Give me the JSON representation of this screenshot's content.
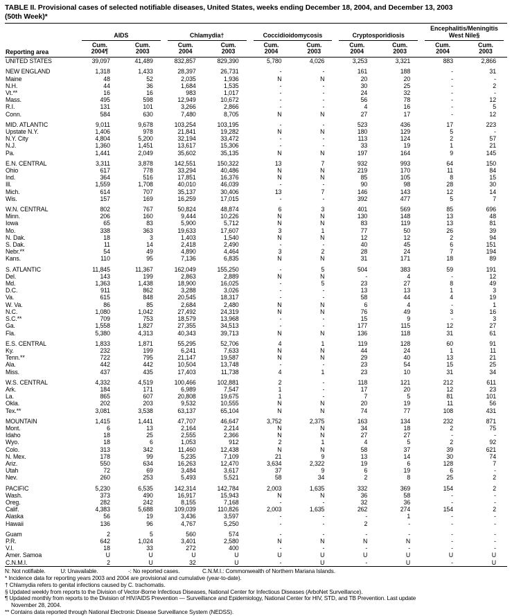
{
  "title": {
    "line1": "TABLE II. Provisional cases of selected notifiable diseases, United States, weeks ending December 18, 2004, and December 13, 2003",
    "line2": "(50th Week)*"
  },
  "table": {
    "reporting_area_header": "Reporting area",
    "groups": [
      {
        "label": "AIDS"
      },
      {
        "label": "Chlamydia†"
      },
      {
        "label": "Coccidioidomycosis"
      },
      {
        "label": "Cryptosporidiosis"
      },
      {
        "label": "Encephalitis/Meningitis\nWest Nile§"
      }
    ],
    "subheaders": [
      "Cum.\n2004¶",
      "Cum.\n2003",
      "Cum.\n2004",
      "Cum.\n2003",
      "Cum.\n2004",
      "Cum.\n2003",
      "Cum.\n2004",
      "Cum.\n2003",
      "Cum.\n2004",
      "Cum.\n2003"
    ],
    "rows": [
      {
        "area": "UNITED STATES",
        "gap": false,
        "values": [
          "39,097",
          "41,489",
          "832,857",
          "829,390",
          "5,780",
          "4,026",
          "3,253",
          "3,321",
          "883",
          "2,866"
        ]
      },
      {
        "area": "NEW ENGLAND",
        "gap": true,
        "values": [
          "1,318",
          "1,433",
          "28,397",
          "26,731",
          "-",
          "-",
          "161",
          "188",
          "-",
          "31"
        ]
      },
      {
        "area": "Maine",
        "gap": false,
        "values": [
          "48",
          "52",
          "2,035",
          "1,936",
          "N",
          "N",
          "20",
          "20",
          "-",
          "-"
        ]
      },
      {
        "area": "N.H.",
        "gap": false,
        "values": [
          "44",
          "36",
          "1,684",
          "1,535",
          "-",
          "-",
          "30",
          "25",
          "-",
          "2"
        ]
      },
      {
        "area": "Vt.**",
        "gap": false,
        "values": [
          "16",
          "16",
          "983",
          "1,017",
          "-",
          "-",
          "24",
          "32",
          "-",
          "-"
        ]
      },
      {
        "area": "Mass.",
        "gap": false,
        "values": [
          "495",
          "598",
          "12,949",
          "10,672",
          "-",
          "-",
          "56",
          "78",
          "-",
          "12"
        ]
      },
      {
        "area": "R.I.",
        "gap": false,
        "values": [
          "131",
          "101",
          "3,266",
          "2,866",
          "-",
          "-",
          "4",
          "16",
          "-",
          "5"
        ]
      },
      {
        "area": "Conn.",
        "gap": false,
        "values": [
          "584",
          "630",
          "7,480",
          "8,705",
          "N",
          "N",
          "27",
          "17",
          "-",
          "12"
        ]
      },
      {
        "area": "MID. ATLANTIC",
        "gap": true,
        "values": [
          "9,011",
          "9,678",
          "103,254",
          "103,195",
          "-",
          "-",
          "523",
          "436",
          "17",
          "223"
        ]
      },
      {
        "area": "Upstate N.Y.",
        "gap": false,
        "values": [
          "1,406",
          "978",
          "21,841",
          "19,282",
          "N",
          "N",
          "180",
          "129",
          "5",
          "-"
        ]
      },
      {
        "area": "N.Y. City",
        "gap": false,
        "values": [
          "4,804",
          "5,200",
          "32,194",
          "33,472",
          "-",
          "-",
          "113",
          "124",
          "2",
          "57"
        ]
      },
      {
        "area": "N.J.",
        "gap": false,
        "values": [
          "1,360",
          "1,451",
          "13,617",
          "15,306",
          "-",
          "-",
          "33",
          "19",
          "1",
          "21"
        ]
      },
      {
        "area": "Pa.",
        "gap": false,
        "values": [
          "1,441",
          "2,049",
          "35,602",
          "35,135",
          "N",
          "N",
          "197",
          "164",
          "9",
          "145"
        ]
      },
      {
        "area": "E.N. CENTRAL",
        "gap": true,
        "values": [
          "3,311",
          "3,878",
          "142,551",
          "150,322",
          "13",
          "7",
          "932",
          "993",
          "64",
          "150"
        ]
      },
      {
        "area": "Ohio",
        "gap": false,
        "values": [
          "617",
          "778",
          "33,294",
          "40,486",
          "N",
          "N",
          "219",
          "170",
          "11",
          "84"
        ]
      },
      {
        "area": "Ind.",
        "gap": false,
        "values": [
          "364",
          "516",
          "17,851",
          "16,376",
          "N",
          "N",
          "85",
          "105",
          "8",
          "15"
        ]
      },
      {
        "area": "Ill.",
        "gap": false,
        "values": [
          "1,559",
          "1,708",
          "40,010",
          "46,039",
          "-",
          "-",
          "90",
          "98",
          "28",
          "30"
        ]
      },
      {
        "area": "Mich.",
        "gap": false,
        "values": [
          "614",
          "707",
          "35,137",
          "30,406",
          "13",
          "7",
          "146",
          "143",
          "12",
          "14"
        ]
      },
      {
        "area": "Wis.",
        "gap": false,
        "values": [
          "157",
          "169",
          "16,259",
          "17,015",
          "-",
          "-",
          "392",
          "477",
          "5",
          "7"
        ]
      },
      {
        "area": "W.N. CENTRAL",
        "gap": true,
        "values": [
          "802",
          "767",
          "50,824",
          "48,874",
          "6",
          "3",
          "401",
          "569",
          "85",
          "696"
        ]
      },
      {
        "area": "Minn.",
        "gap": false,
        "values": [
          "206",
          "160",
          "9,444",
          "10,226",
          "N",
          "N",
          "130",
          "148",
          "13",
          "48"
        ]
      },
      {
        "area": "Iowa",
        "gap": false,
        "values": [
          "65",
          "83",
          "5,900",
          "5,712",
          "N",
          "N",
          "83",
          "119",
          "13",
          "81"
        ]
      },
      {
        "area": "Mo.",
        "gap": false,
        "values": [
          "338",
          "363",
          "19,633",
          "17,607",
          "3",
          "1",
          "77",
          "50",
          "26",
          "39"
        ]
      },
      {
        "area": "N. Dak.",
        "gap": false,
        "values": [
          "18",
          "3",
          "1,403",
          "1,540",
          "N",
          "N",
          "12",
          "12",
          "2",
          "94"
        ]
      },
      {
        "area": "S. Dak.",
        "gap": false,
        "values": [
          "11",
          "14",
          "2,418",
          "2,490",
          "-",
          "-",
          "40",
          "45",
          "6",
          "151"
        ]
      },
      {
        "area": "Nebr.**",
        "gap": false,
        "values": [
          "54",
          "49",
          "4,890",
          "4,464",
          "3",
          "2",
          "28",
          "24",
          "7",
          "194"
        ]
      },
      {
        "area": "Kans.",
        "gap": false,
        "values": [
          "110",
          "95",
          "7,136",
          "6,835",
          "N",
          "N",
          "31",
          "171",
          "18",
          "89"
        ]
      },
      {
        "area": "S. ATLANTIC",
        "gap": true,
        "values": [
          "11,845",
          "11,367",
          "162,049",
          "155,250",
          "-",
          "5",
          "504",
          "383",
          "59",
          "191"
        ]
      },
      {
        "area": "Del.",
        "gap": false,
        "values": [
          "143",
          "199",
          "2,863",
          "2,889",
          "N",
          "N",
          "-",
          "4",
          "-",
          "12"
        ]
      },
      {
        "area": "Md.",
        "gap": false,
        "values": [
          "1,363",
          "1,438",
          "18,900",
          "16,025",
          "-",
          "5",
          "23",
          "27",
          "8",
          "49"
        ]
      },
      {
        "area": "D.C.",
        "gap": false,
        "values": [
          "911",
          "862",
          "3,288",
          "3,026",
          "-",
          "-",
          "13",
          "13",
          "1",
          "3"
        ]
      },
      {
        "area": "Va.",
        "gap": false,
        "values": [
          "615",
          "848",
          "20,545",
          "18,317",
          "-",
          "-",
          "58",
          "44",
          "4",
          "19"
        ]
      },
      {
        "area": "W. Va.",
        "gap": false,
        "values": [
          "86",
          "85",
          "2,684",
          "2,480",
          "N",
          "N",
          "6",
          "4",
          "-",
          "1"
        ]
      },
      {
        "area": "N.C.",
        "gap": false,
        "values": [
          "1,080",
          "1,042",
          "27,492",
          "24,319",
          "N",
          "N",
          "76",
          "49",
          "3",
          "16"
        ]
      },
      {
        "area": "S.C.**",
        "gap": false,
        "values": [
          "709",
          "753",
          "18,579",
          "13,968",
          "-",
          "-",
          "15",
          "9",
          "-",
          "3"
        ]
      },
      {
        "area": "Ga.",
        "gap": false,
        "values": [
          "1,558",
          "1,827",
          "27,355",
          "34,513",
          "-",
          "-",
          "177",
          "115",
          "12",
          "27"
        ]
      },
      {
        "area": "Fla.",
        "gap": false,
        "values": [
          "5,380",
          "4,313",
          "40,343",
          "39,713",
          "N",
          "N",
          "136",
          "118",
          "31",
          "61"
        ]
      },
      {
        "area": "E.S. CENTRAL",
        "gap": true,
        "values": [
          "1,833",
          "1,871",
          "55,295",
          "52,706",
          "4",
          "1",
          "119",
          "128",
          "60",
          "91"
        ]
      },
      {
        "area": "Ky.",
        "gap": false,
        "values": [
          "232",
          "199",
          "6,241",
          "7,633",
          "N",
          "N",
          "44",
          "24",
          "1",
          "11"
        ]
      },
      {
        "area": "Tenn.**",
        "gap": false,
        "values": [
          "722",
          "795",
          "21,147",
          "19,587",
          "N",
          "N",
          "29",
          "40",
          "13",
          "21"
        ]
      },
      {
        "area": "Ala.",
        "gap": false,
        "values": [
          "442",
          "442",
          "10,504",
          "13,748",
          "-",
          "-",
          "23",
          "54",
          "15",
          "25"
        ]
      },
      {
        "area": "Miss.",
        "gap": false,
        "values": [
          "437",
          "435",
          "17,403",
          "11,738",
          "4",
          "1",
          "23",
          "10",
          "31",
          "34"
        ]
      },
      {
        "area": "W.S. CENTRAL",
        "gap": true,
        "values": [
          "4,332",
          "4,519",
          "100,466",
          "102,881",
          "2",
          "-",
          "118",
          "121",
          "212",
          "611"
        ]
      },
      {
        "area": "Ark.",
        "gap": false,
        "values": [
          "184",
          "171",
          "6,989",
          "7,547",
          "1",
          "-",
          "17",
          "20",
          "12",
          "23"
        ]
      },
      {
        "area": "La.",
        "gap": false,
        "values": [
          "865",
          "607",
          "20,808",
          "19,675",
          "1",
          "-",
          "7",
          "5",
          "81",
          "101"
        ]
      },
      {
        "area": "Okla.",
        "gap": false,
        "values": [
          "202",
          "203",
          "9,532",
          "10,555",
          "N",
          "N",
          "20",
          "19",
          "11",
          "56"
        ]
      },
      {
        "area": "Tex.**",
        "gap": false,
        "values": [
          "3,081",
          "3,538",
          "63,137",
          "65,104",
          "N",
          "N",
          "74",
          "77",
          "108",
          "431"
        ]
      },
      {
        "area": "MOUNTAIN",
        "gap": true,
        "values": [
          "1,415",
          "1,441",
          "47,707",
          "46,647",
          "3,752",
          "2,375",
          "163",
          "134",
          "232",
          "871"
        ]
      },
      {
        "area": "Mont.",
        "gap": false,
        "values": [
          "6",
          "13",
          "2,164",
          "2,214",
          "N",
          "N",
          "34",
          "18",
          "2",
          "75"
        ]
      },
      {
        "area": "Idaho",
        "gap": false,
        "values": [
          "18",
          "25",
          "2,555",
          "2,366",
          "N",
          "N",
          "27",
          "27",
          "-",
          "-"
        ]
      },
      {
        "area": "Wyo.",
        "gap": false,
        "values": [
          "18",
          "6",
          "1,053",
          "912",
          "2",
          "1",
          "4",
          "5",
          "2",
          "92"
        ]
      },
      {
        "area": "Colo.",
        "gap": false,
        "values": [
          "313",
          "342",
          "11,460",
          "12,438",
          "N",
          "N",
          "58",
          "37",
          "39",
          "621"
        ]
      },
      {
        "area": "N. Mex.",
        "gap": false,
        "values": [
          "178",
          "99",
          "5,235",
          "7,109",
          "21",
          "9",
          "13",
          "14",
          "30",
          "74"
        ]
      },
      {
        "area": "Ariz.",
        "gap": false,
        "values": [
          "550",
          "634",
          "16,263",
          "12,470",
          "3,634",
          "2,322",
          "19",
          "6",
          "128",
          "7"
        ]
      },
      {
        "area": "Utah",
        "gap": false,
        "values": [
          "72",
          "69",
          "3,484",
          "3,617",
          "37",
          "9",
          "6",
          "19",
          "6",
          "-"
        ]
      },
      {
        "area": "Nev.",
        "gap": false,
        "values": [
          "260",
          "253",
          "5,493",
          "5,521",
          "58",
          "34",
          "2",
          "8",
          "25",
          "2"
        ]
      },
      {
        "area": "PACIFIC",
        "gap": true,
        "values": [
          "5,230",
          "6,535",
          "142,314",
          "142,784",
          "2,003",
          "1,635",
          "332",
          "369",
          "154",
          "2"
        ]
      },
      {
        "area": "Wash.",
        "gap": false,
        "values": [
          "373",
          "490",
          "16,917",
          "15,943",
          "N",
          "N",
          "36",
          "58",
          "-",
          "-"
        ]
      },
      {
        "area": "Oreg.",
        "gap": false,
        "values": [
          "282",
          "242",
          "8,155",
          "7,168",
          "-",
          "-",
          "32",
          "36",
          "-",
          "-"
        ]
      },
      {
        "area": "Calif.",
        "gap": false,
        "values": [
          "4,383",
          "5,688",
          "109,039",
          "110,826",
          "2,003",
          "1,635",
          "262",
          "274",
          "154",
          "2"
        ]
      },
      {
        "area": "Alaska",
        "gap": false,
        "values": [
          "56",
          "19",
          "3,436",
          "3,597",
          "-",
          "-",
          "-",
          "1",
          "-",
          "-"
        ]
      },
      {
        "area": "Hawaii",
        "gap": false,
        "values": [
          "136",
          "96",
          "4,767",
          "5,250",
          "-",
          "-",
          "2",
          "-",
          "-",
          "-"
        ]
      },
      {
        "area": "Guam",
        "gap": true,
        "values": [
          "2",
          "5",
          "560",
          "574",
          "-",
          "-",
          "-",
          "-",
          "-",
          "-"
        ]
      },
      {
        "area": "P.R.",
        "gap": false,
        "values": [
          "642",
          "1,024",
          "3,401",
          "2,580",
          "N",
          "N",
          "N",
          "N",
          "-",
          "-"
        ]
      },
      {
        "area": "V.I.",
        "gap": false,
        "values": [
          "18",
          "33",
          "272",
          "400",
          "-",
          "-",
          "-",
          "-",
          "-",
          "-"
        ]
      },
      {
        "area": "Amer. Samoa",
        "gap": false,
        "values": [
          "U",
          "U",
          "U",
          "U",
          "U",
          "U",
          "U",
          "U",
          "U",
          "U"
        ]
      },
      {
        "area": "C.N.M.I.",
        "gap": false,
        "values": [
          "2",
          "U",
          "32",
          "U",
          "-",
          "U",
          "-",
          "U",
          "-",
          "U"
        ]
      }
    ]
  },
  "footnotes": [
    "N: Not notifiable.          U: Unavailable.                    -: No reported cases.               C.N.M.I.: Commonwealth of Northern Mariana Islands.",
    "* Incidence data for reporting years 2003 and 2004 are provisional and cumulative (year-to-date).",
    "† Chlamydia refers to genital infections caused by C. trachomatis.",
    "§ Updated weekly from reports to the Division of Vector-Borne Infectious Diseases, National Center for Infectious Diseases (ArboNet Surveillance).",
    "¶ Updated monthly from reports to the Division of HIV/AIDS Prevention — Surveillance and Epidemiology, National Center for HIV, STD, and TB Prevention. Last update\nNovember 28, 2004.",
    "** Contains data reported through National Electronic Disease Surveillance System (NEDSS)."
  ]
}
